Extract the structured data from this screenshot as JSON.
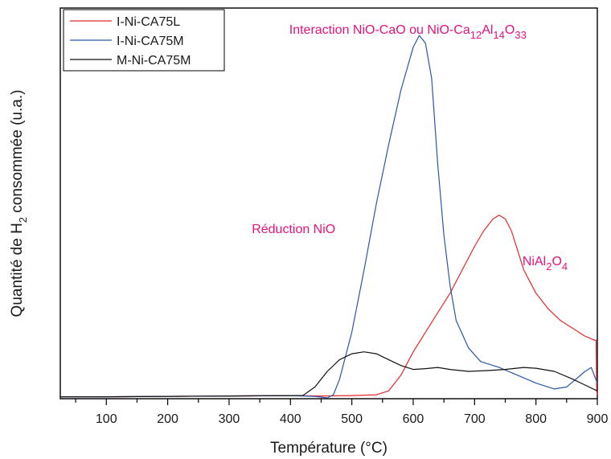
{
  "chart_data": {
    "type": "line",
    "xlabel": "Température (°C)",
    "ylabel": {
      "prefix": "Quantité de H",
      "sub": "2",
      "suffix": " consommée (u.a.)"
    },
    "xlim": [
      25,
      900
    ],
    "ylim": [
      0,
      1
    ],
    "x_ticks": [
      100,
      200,
      300,
      400,
      500,
      600,
      700,
      800,
      900
    ],
    "x_minor_step": 50,
    "y_ticks_shown": false,
    "grid": false,
    "legend_position": "top-left",
    "series": [
      {
        "name": "I-Ni-CA75L",
        "color": "#e8262b",
        "points": [
          [
            25,
            0.005
          ],
          [
            100,
            0.005
          ],
          [
            200,
            0.006
          ],
          [
            300,
            0.007
          ],
          [
            400,
            0.008
          ],
          [
            450,
            0.007
          ],
          [
            500,
            0.008
          ],
          [
            540,
            0.01
          ],
          [
            560,
            0.02
          ],
          [
            580,
            0.06
          ],
          [
            600,
            0.12
          ],
          [
            620,
            0.17
          ],
          [
            640,
            0.22
          ],
          [
            660,
            0.27
          ],
          [
            680,
            0.33
          ],
          [
            700,
            0.39
          ],
          [
            715,
            0.43
          ],
          [
            730,
            0.46
          ],
          [
            740,
            0.47
          ],
          [
            750,
            0.46
          ],
          [
            760,
            0.43
          ],
          [
            770,
            0.38
          ],
          [
            780,
            0.33
          ],
          [
            790,
            0.3
          ],
          [
            800,
            0.27
          ],
          [
            820,
            0.23
          ],
          [
            840,
            0.2
          ],
          [
            860,
            0.18
          ],
          [
            880,
            0.16
          ],
          [
            895,
            0.15
          ],
          [
            898,
            0.15
          ],
          [
            899,
            0.02
          ],
          [
            900,
            0.01
          ]
        ]
      },
      {
        "name": "I-Ni-CA75M",
        "color": "#2a57a6",
        "points": [
          [
            25,
            0.005
          ],
          [
            100,
            0.005
          ],
          [
            200,
            0.006
          ],
          [
            300,
            0.007
          ],
          [
            400,
            0.008
          ],
          [
            440,
            0.006
          ],
          [
            460,
            0.002
          ],
          [
            470,
            0.01
          ],
          [
            480,
            0.05
          ],
          [
            500,
            0.17
          ],
          [
            520,
            0.33
          ],
          [
            540,
            0.5
          ],
          [
            560,
            0.65
          ],
          [
            580,
            0.79
          ],
          [
            600,
            0.9
          ],
          [
            610,
            0.93
          ],
          [
            620,
            0.91
          ],
          [
            630,
            0.82
          ],
          [
            640,
            0.6
          ],
          [
            650,
            0.42
          ],
          [
            660,
            0.29
          ],
          [
            670,
            0.2
          ],
          [
            690,
            0.13
          ],
          [
            710,
            0.095
          ],
          [
            740,
            0.08
          ],
          [
            770,
            0.06
          ],
          [
            800,
            0.04
          ],
          [
            830,
            0.025
          ],
          [
            850,
            0.03
          ],
          [
            880,
            0.07
          ],
          [
            890,
            0.08
          ],
          [
            900,
            0.04
          ]
        ]
      },
      {
        "name": "M-Ni-CA75M",
        "color": "#111111",
        "points": [
          [
            25,
            0.005
          ],
          [
            100,
            0.005
          ],
          [
            200,
            0.006
          ],
          [
            300,
            0.007
          ],
          [
            400,
            0.008
          ],
          [
            420,
            0.008
          ],
          [
            440,
            0.03
          ],
          [
            460,
            0.07
          ],
          [
            480,
            0.1
          ],
          [
            500,
            0.115
          ],
          [
            520,
            0.12
          ],
          [
            540,
            0.115
          ],
          [
            560,
            0.1
          ],
          [
            580,
            0.085
          ],
          [
            600,
            0.075
          ],
          [
            620,
            0.077
          ],
          [
            640,
            0.08
          ],
          [
            660,
            0.075
          ],
          [
            690,
            0.07
          ],
          [
            720,
            0.072
          ],
          [
            750,
            0.075
          ],
          [
            780,
            0.08
          ],
          [
            800,
            0.078
          ],
          [
            830,
            0.07
          ],
          [
            860,
            0.05
          ],
          [
            880,
            0.035
          ],
          [
            900,
            0.02
          ]
        ]
      }
    ],
    "annotations": [
      {
        "parts": [
          {
            "t": "Interaction NiO-CaO ou NiO-Ca",
            "sub": false
          },
          {
            "t": "12",
            "sub": true
          },
          {
            "t": "Al",
            "sub": false
          },
          {
            "t": "14",
            "sub": true
          },
          {
            "t": "O",
            "sub": false
          },
          {
            "t": "33",
            "sub": true
          }
        ],
        "color": "#e6127a",
        "anchor": "above-peak-I-Ni-CA75M"
      },
      {
        "parts": [
          {
            "t": "Réduction NiO",
            "sub": false
          }
        ],
        "color": "#e6127a",
        "anchor": "left-of-rise"
      },
      {
        "parts": [
          {
            "t": "NiAl",
            "sub": false
          },
          {
            "t": "2",
            "sub": true
          },
          {
            "t": "O",
            "sub": false
          },
          {
            "t": "4",
            "sub": true
          }
        ],
        "color": "#e6127a",
        "anchor": "right-of-peak-I-Ni-CA75L"
      }
    ]
  }
}
